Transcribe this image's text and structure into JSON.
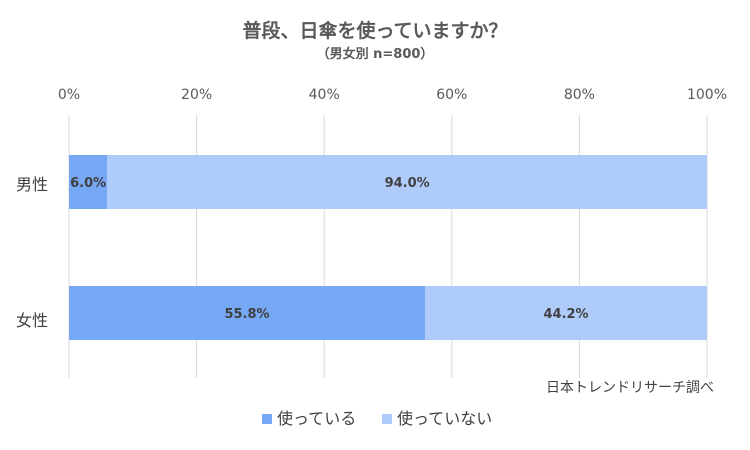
{
  "title": "普段、日傘を使っていますか？",
  "subtitle": "（男女別  n=800）",
  "source": "日本トレンドリサーチ調べ",
  "colors": {
    "used": "#76a8f5",
    "not_used": "#aecbfa"
  },
  "chart_data": {
    "type": "bar",
    "orientation": "horizontal",
    "stacked": "percent",
    "categories": [
      "男性",
      "女性"
    ],
    "series": [
      {
        "name": "使っている",
        "values": [
          6.0,
          55.8
        ]
      },
      {
        "name": "使っていない",
        "values": [
          94.0,
          44.2
        ]
      }
    ],
    "xlim": [
      0,
      100
    ],
    "x_ticks": [
      "0%",
      "20%",
      "40%",
      "60%",
      "80%",
      "100%"
    ],
    "data_labels": [
      [
        "6.0%",
        "55.8%"
      ],
      [
        "94.0%",
        "44.2%"
      ]
    ],
    "grid": true,
    "legend": "bottom"
  }
}
